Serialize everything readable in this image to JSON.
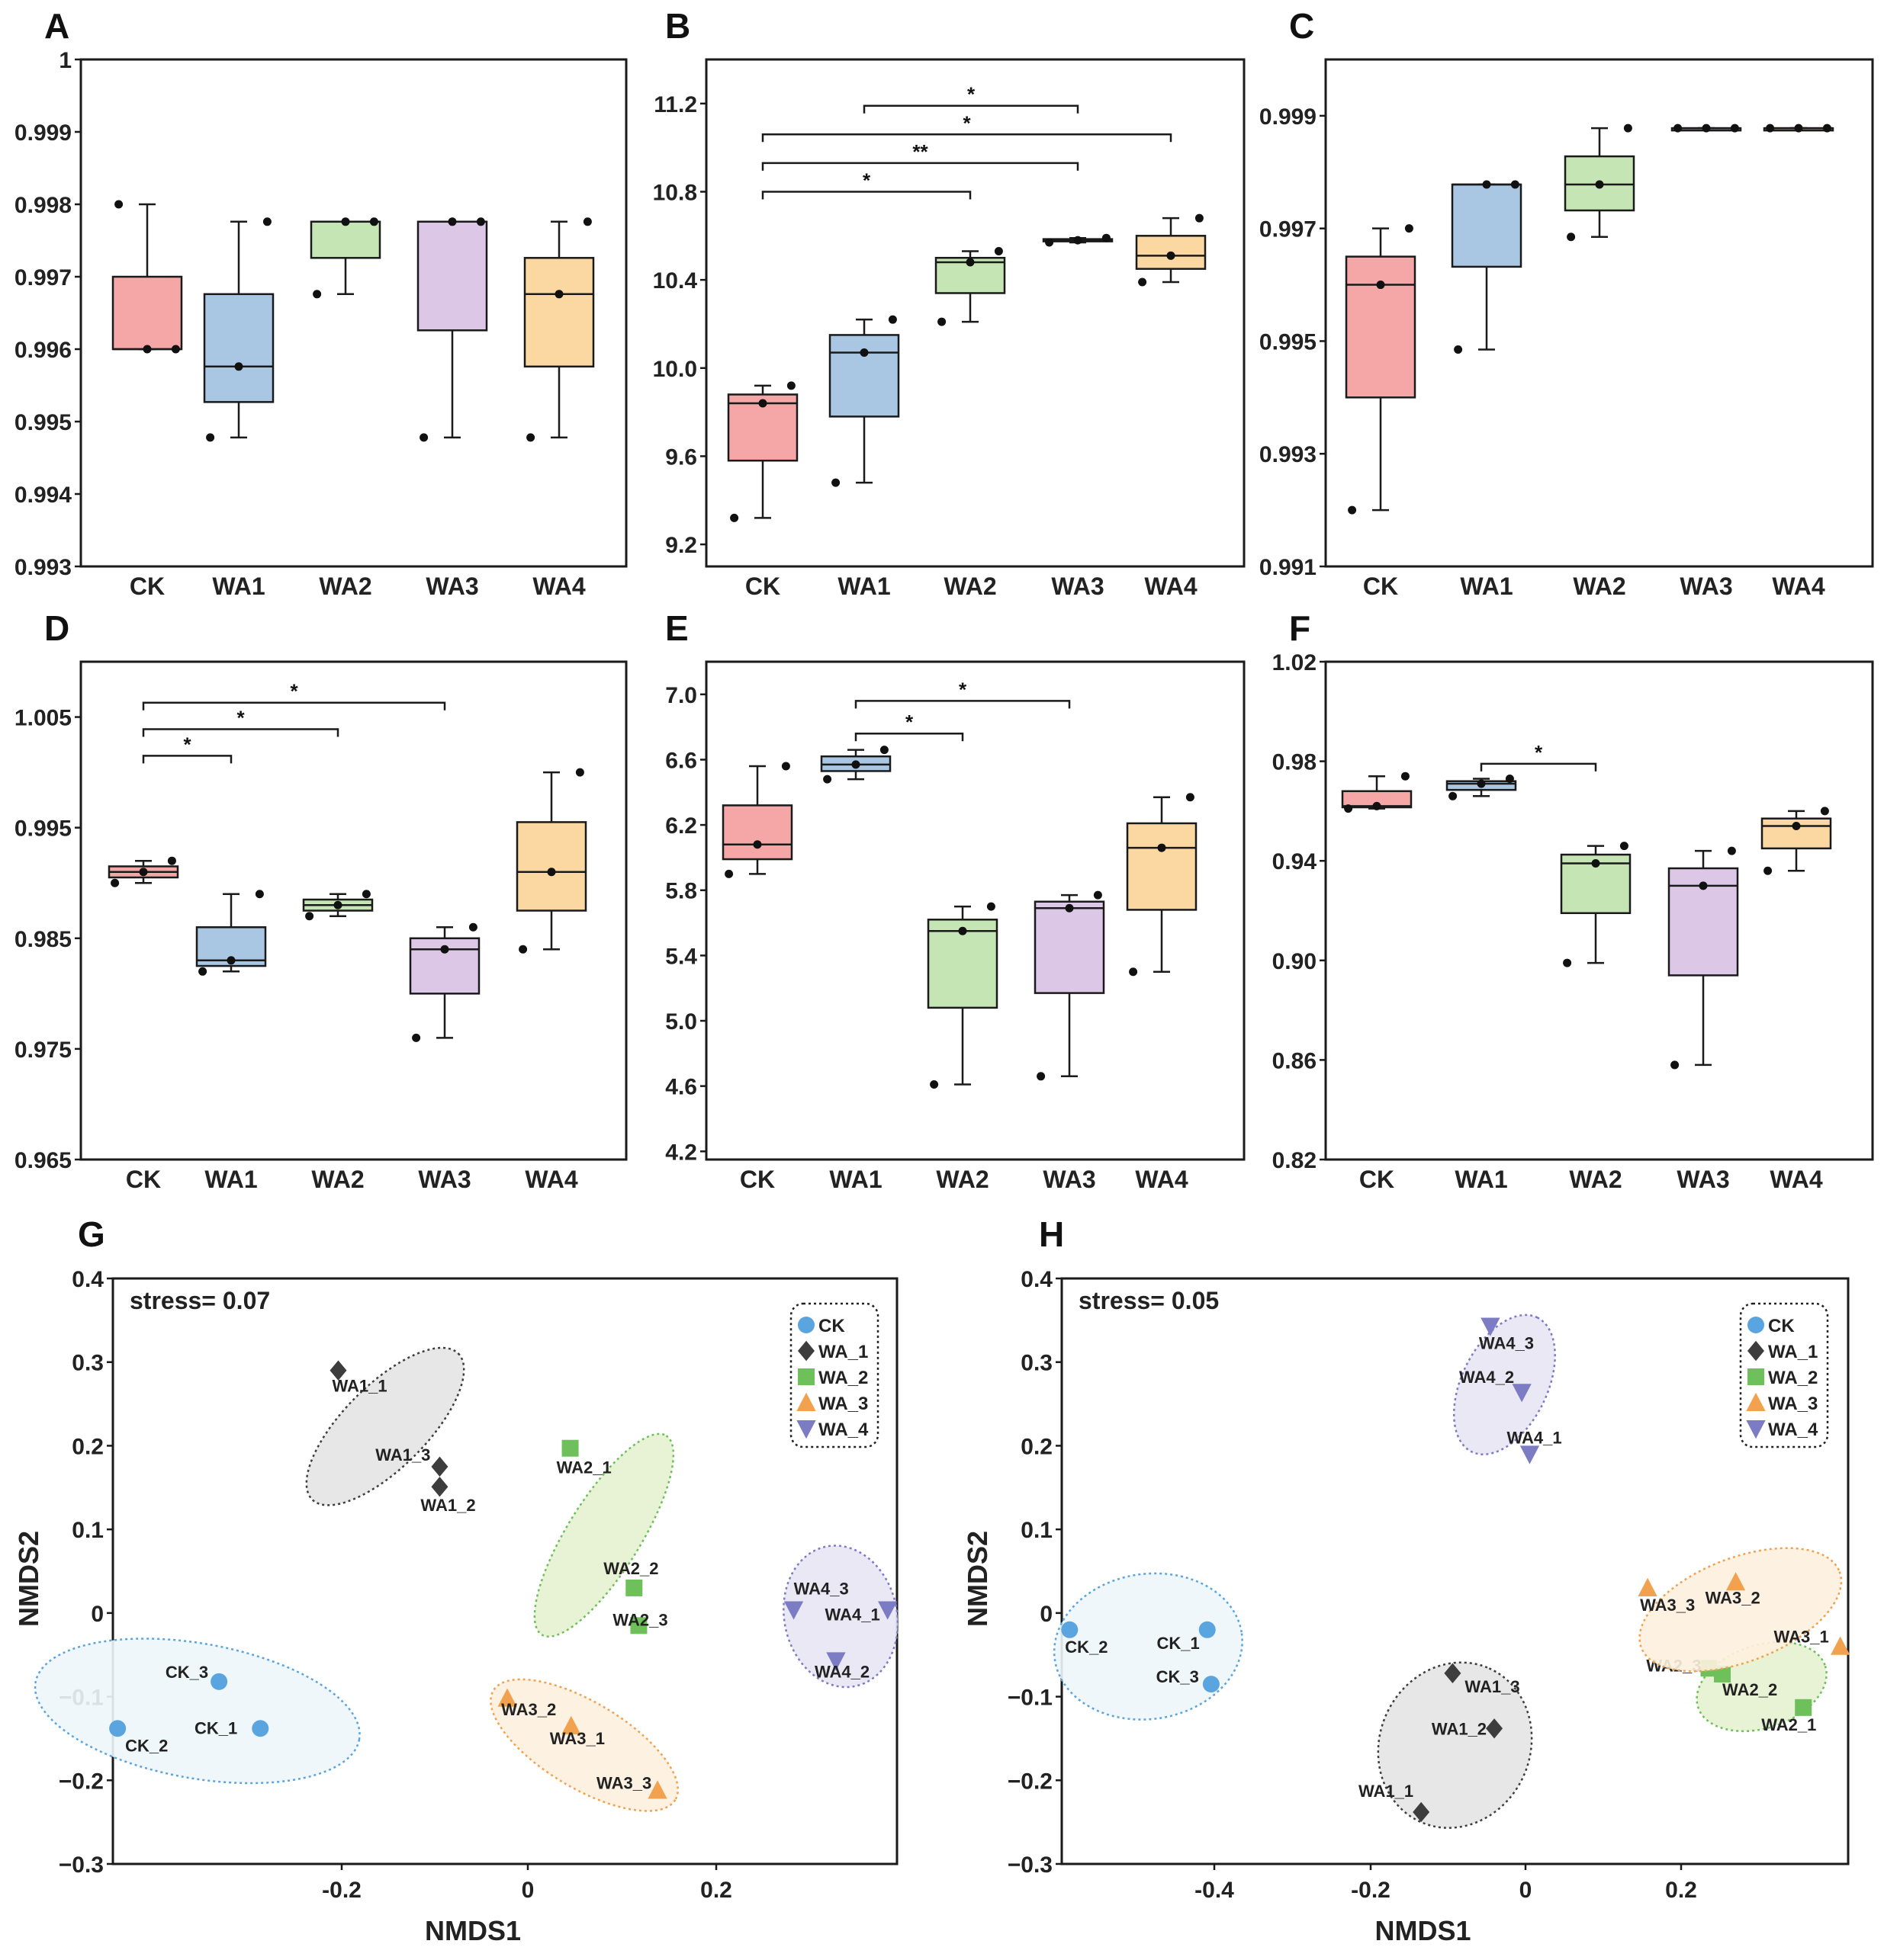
{
  "figure": {
    "colors": {
      "CK": "#f4a7a6",
      "WA1": "#a9c7e3",
      "WA2": "#c5e5b5",
      "WA3": "#dcc8e6",
      "WA4": "#fbd8a1"
    },
    "point_colors": {
      "CK": "#5aa5e0",
      "WA_1": "#3d3d3d",
      "WA_2": "#6ec05a",
      "WA_3": "#f2a24e",
      "WA_4": "#7b7cc3"
    },
    "ellipse_fill": {
      "CK": "#eef6fb",
      "WA1": "#e4e4e4",
      "WA2": "#e6f2d2",
      "WA3": "#fdf1de",
      "WA4": "#e8e6f4"
    }
  },
  "chart_data": [
    {
      "type": "box",
      "panel": "A",
      "title": "A",
      "categories": [
        "CK",
        "WA1",
        "WA2",
        "WA3",
        "WA4"
      ],
      "ylim": [
        0.993,
        1
      ],
      "yticks": [
        "0.993",
        "0.994",
        "0.995",
        "0.996",
        "0.997",
        "0.998",
        "0.999",
        "1"
      ],
      "series": [
        {
          "name": "CK",
          "whisker_low": 0.996,
          "q1": 0.996,
          "median": 0.996,
          "q3": 0.997,
          "whisker_high": 0.998,
          "points": [
            0.998,
            0.996,
            0.996
          ]
        },
        {
          "name": "WA1",
          "whisker_low": 0.99478,
          "q1": 0.99527,
          "median": 0.99576,
          "q3": 0.99676,
          "whisker_high": 0.99776,
          "points": [
            0.99478,
            0.99576,
            0.99776
          ]
        },
        {
          "name": "WA2",
          "whisker_low": 0.99676,
          "q1": 0.99726,
          "median": 0.99776,
          "q3": 0.99776,
          "whisker_high": 0.99776,
          "points": [
            0.99676,
            0.99776,
            0.99776
          ]
        },
        {
          "name": "WA3",
          "whisker_low": 0.99478,
          "q1": 0.99626,
          "median": 0.99776,
          "q3": 0.99776,
          "whisker_high": 0.99776,
          "points": [
            0.99478,
            0.99776,
            0.99776
          ]
        },
        {
          "name": "WA4",
          "whisker_low": 0.99478,
          "q1": 0.99576,
          "median": 0.99676,
          "q3": 0.99726,
          "whisker_high": 0.99776,
          "points": [
            0.99478,
            0.99676,
            0.99776
          ]
        }
      ],
      "significance": []
    },
    {
      "type": "box",
      "panel": "B",
      "title": "B",
      "categories": [
        "CK",
        "WA1",
        "WA2",
        "WA3",
        "WA4"
      ],
      "ylim": [
        9.1,
        11.4
      ],
      "yticks": [
        "9.2",
        "9.6",
        "10.0",
        "10.4",
        "10.8",
        "11.2"
      ],
      "series": [
        {
          "name": "CK",
          "whisker_low": 9.32,
          "q1": 9.58,
          "median": 9.84,
          "q3": 9.88,
          "whisker_high": 9.92,
          "points": [
            9.32,
            9.84,
            9.92
          ]
        },
        {
          "name": "WA1",
          "whisker_low": 9.48,
          "q1": 9.78,
          "median": 10.07,
          "q3": 10.15,
          "whisker_high": 10.22,
          "points": [
            9.48,
            10.07,
            10.22
          ]
        },
        {
          "name": "WA2",
          "whisker_low": 10.21,
          "q1": 10.34,
          "median": 10.48,
          "q3": 10.5,
          "whisker_high": 10.53,
          "points": [
            10.21,
            10.48,
            10.53
          ]
        },
        {
          "name": "WA3",
          "whisker_low": 10.57,
          "q1": 10.575,
          "median": 10.58,
          "q3": 10.585,
          "whisker_high": 10.59,
          "points": [
            10.57,
            10.58,
            10.59
          ]
        },
        {
          "name": "WA4",
          "whisker_low": 10.39,
          "q1": 10.45,
          "median": 10.51,
          "q3": 10.6,
          "whisker_high": 10.68,
          "points": [
            10.39,
            10.51,
            10.68
          ]
        }
      ],
      "significance": [
        {
          "from": "CK",
          "to": "WA2",
          "label": "*",
          "y": 10.8
        },
        {
          "from": "CK",
          "to": "WA3",
          "label": "**",
          "y": 10.93
        },
        {
          "from": "CK",
          "to": "WA4",
          "label": "*",
          "y": 11.06
        },
        {
          "from": "WA1",
          "to": "WA3",
          "label": "*",
          "y": 11.19
        }
      ]
    },
    {
      "type": "box",
      "panel": "C",
      "title": "C",
      "categories": [
        "CK",
        "WA1",
        "WA2",
        "WA3",
        "WA4"
      ],
      "ylim": [
        0.991,
        1
      ],
      "yticks": [
        "0.991",
        "0.993",
        "0.995",
        "0.997",
        "0.999"
      ],
      "series": [
        {
          "name": "CK",
          "whisker_low": 0.992,
          "q1": 0.994,
          "median": 0.996,
          "q3": 0.9965,
          "whisker_high": 0.997,
          "points": [
            0.992,
            0.996,
            0.997
          ]
        },
        {
          "name": "WA1",
          "whisker_low": 0.99485,
          "q1": 0.99632,
          "median": 0.99778,
          "q3": 0.99778,
          "whisker_high": 0.99778,
          "points": [
            0.99485,
            0.99778,
            0.99778
          ]
        },
        {
          "name": "WA2",
          "whisker_low": 0.99685,
          "q1": 0.99732,
          "median": 0.99778,
          "q3": 0.99828,
          "whisker_high": 0.99878,
          "points": [
            0.99685,
            0.99778,
            0.99878
          ]
        },
        {
          "name": "WA3",
          "whisker_low": 0.99878,
          "q1": 0.99878,
          "median": 0.99878,
          "q3": 0.99878,
          "whisker_high": 0.99878,
          "points": [
            0.99878,
            0.99878,
            0.99878
          ]
        },
        {
          "name": "WA4",
          "whisker_low": 0.99878,
          "q1": 0.99878,
          "median": 0.99878,
          "q3": 0.99878,
          "whisker_high": 0.99878,
          "points": [
            0.99878,
            0.99878,
            0.99878
          ]
        }
      ],
      "significance": []
    },
    {
      "type": "box",
      "panel": "D",
      "title": "D",
      "categories": [
        "CK",
        "WA1",
        "WA2",
        "WA3",
        "WA4"
      ],
      "ylim": [
        0.965,
        1.01
      ],
      "yticks": [
        "0.965",
        "0.975",
        "0.985",
        "0.995",
        "1.005"
      ],
      "series": [
        {
          "name": "CK",
          "whisker_low": 0.99,
          "q1": 0.9905,
          "median": 0.991,
          "q3": 0.9915,
          "whisker_high": 0.992,
          "points": [
            0.99,
            0.991,
            0.992
          ]
        },
        {
          "name": "WA1",
          "whisker_low": 0.982,
          "q1": 0.9825,
          "median": 0.983,
          "q3": 0.986,
          "whisker_high": 0.989,
          "points": [
            0.982,
            0.983,
            0.989
          ]
        },
        {
          "name": "WA2",
          "whisker_low": 0.987,
          "q1": 0.9875,
          "median": 0.988,
          "q3": 0.9885,
          "whisker_high": 0.989,
          "points": [
            0.987,
            0.988,
            0.989
          ]
        },
        {
          "name": "WA3",
          "whisker_low": 0.976,
          "q1": 0.98,
          "median": 0.984,
          "q3": 0.985,
          "whisker_high": 0.986,
          "points": [
            0.976,
            0.984,
            0.986
          ]
        },
        {
          "name": "WA4",
          "whisker_low": 0.984,
          "q1": 0.9875,
          "median": 0.991,
          "q3": 0.9955,
          "whisker_high": 1.0,
          "points": [
            0.984,
            0.991,
            1.0
          ]
        }
      ],
      "significance": [
        {
          "from": "CK",
          "to": "WA1",
          "label": "*",
          "y": 1.0015
        },
        {
          "from": "CK",
          "to": "WA2",
          "label": "*",
          "y": 1.0039
        },
        {
          "from": "CK",
          "to": "WA3",
          "label": "*",
          "y": 1.0063
        }
      ]
    },
    {
      "type": "box",
      "panel": "E",
      "title": "E",
      "categories": [
        "CK",
        "WA1",
        "WA2",
        "WA3",
        "WA4"
      ],
      "ylim": [
        4.15,
        7.2
      ],
      "yticks": [
        "4.2",
        "4.6",
        "5.0",
        "5.4",
        "5.8",
        "6.2",
        "6.6",
        "7.0"
      ],
      "series": [
        {
          "name": "CK",
          "whisker_low": 5.9,
          "q1": 5.99,
          "median": 6.08,
          "q3": 6.32,
          "whisker_high": 6.56,
          "points": [
            5.9,
            6.08,
            6.56
          ]
        },
        {
          "name": "WA1",
          "whisker_low": 6.48,
          "q1": 6.53,
          "median": 6.57,
          "q3": 6.62,
          "whisker_high": 6.66,
          "points": [
            6.48,
            6.57,
            6.66
          ]
        },
        {
          "name": "WA2",
          "whisker_low": 4.61,
          "q1": 5.08,
          "median": 5.55,
          "q3": 5.62,
          "whisker_high": 5.7,
          "points": [
            4.61,
            5.55,
            5.7
          ]
        },
        {
          "name": "WA3",
          "whisker_low": 4.66,
          "q1": 5.17,
          "median": 5.69,
          "q3": 5.73,
          "whisker_high": 5.77,
          "points": [
            4.66,
            5.69,
            5.77
          ]
        },
        {
          "name": "WA4",
          "whisker_low": 5.3,
          "q1": 5.68,
          "median": 6.06,
          "q3": 6.21,
          "whisker_high": 6.37,
          "points": [
            5.3,
            6.06,
            6.37
          ]
        }
      ],
      "significance": [
        {
          "from": "WA1",
          "to": "WA2",
          "label": "*",
          "y": 6.76
        },
        {
          "from": "WA1",
          "to": "WA3",
          "label": "*",
          "y": 6.96
        }
      ]
    },
    {
      "type": "box",
      "panel": "F",
      "title": "F",
      "categories": [
        "CK",
        "WA1",
        "WA2",
        "WA3",
        "WA4"
      ],
      "ylim": [
        0.82,
        1.02
      ],
      "yticks": [
        "0.82",
        "0.86",
        "0.90",
        "0.94",
        "0.98",
        "1.02"
      ],
      "series": [
        {
          "name": "CK",
          "whisker_low": 0.961,
          "q1": 0.9615,
          "median": 0.962,
          "q3": 0.968,
          "whisker_high": 0.974,
          "points": [
            0.961,
            0.962,
            0.974
          ]
        },
        {
          "name": "WA1",
          "whisker_low": 0.966,
          "q1": 0.9685,
          "median": 0.971,
          "q3": 0.972,
          "whisker_high": 0.973,
          "points": [
            0.966,
            0.971,
            0.973
          ]
        },
        {
          "name": "WA2",
          "whisker_low": 0.899,
          "q1": 0.919,
          "median": 0.939,
          "q3": 0.9425,
          "whisker_high": 0.946,
          "points": [
            0.899,
            0.939,
            0.946
          ]
        },
        {
          "name": "WA3",
          "whisker_low": 0.858,
          "q1": 0.894,
          "median": 0.93,
          "q3": 0.937,
          "whisker_high": 0.944,
          "points": [
            0.858,
            0.93,
            0.944
          ]
        },
        {
          "name": "WA4",
          "whisker_low": 0.936,
          "q1": 0.945,
          "median": 0.954,
          "q3": 0.957,
          "whisker_high": 0.96,
          "points": [
            0.936,
            0.954,
            0.96
          ]
        }
      ],
      "significance": [
        {
          "from": "WA1",
          "to": "WA2",
          "label": "*",
          "y": 0.979
        }
      ]
    },
    {
      "type": "scatter",
      "panel": "G",
      "title": "G",
      "annotation": "stress= 0.07",
      "xlabel": "NMDS1",
      "ylabel": "NMDS2",
      "xlim": [
        -0.44,
        0.395
      ],
      "ylim": [
        -0.3,
        0.4
      ],
      "xticks": [
        "-0.2",
        "0",
        "0.2"
      ],
      "yticks": [
        "−0.3",
        "−0.2",
        "−0.1",
        "0",
        "0.1",
        "0.2",
        "0.3",
        "0.4"
      ],
      "legend": [
        "CK",
        "WA_1",
        "WA_2",
        "WA_3",
        "WA_4"
      ],
      "groups": [
        {
          "name": "CK",
          "ellipse": {
            "cx": -0.35,
            "cy": -0.117,
            "rx": 0.175,
            "ry": 0.052,
            "angle": 10
          },
          "points": [
            {
              "label": "CK_1",
              "x": -0.283,
              "y": -0.138
            },
            {
              "label": "CK_2",
              "x": -0.435,
              "y": -0.138
            },
            {
              "label": "CK_3",
              "x": -0.327,
              "y": -0.082
            }
          ]
        },
        {
          "name": "WA_1",
          "ellipse": {
            "cx": -0.15,
            "cy": 0.223,
            "rx": 0.11,
            "ry": 0.032,
            "angle": -45
          },
          "points": [
            {
              "label": "WA1_1",
              "x": -0.2,
              "y": 0.29
            },
            {
              "label": "WA1_2",
              "x": -0.092,
              "y": 0.151
            },
            {
              "label": "WA1_3",
              "x": -0.092,
              "y": 0.175
            }
          ]
        },
        {
          "name": "WA_2",
          "ellipse": {
            "cx": 0.083,
            "cy": 0.093,
            "rx": 0.125,
            "ry": 0.028,
            "angle": -58
          },
          "points": [
            {
              "label": "WA2_1",
              "x": 0.047,
              "y": 0.197
            },
            {
              "label": "WA2_2",
              "x": 0.115,
              "y": 0.03
            },
            {
              "label": "WA2_3",
              "x": 0.12,
              "y": -0.015
            }
          ]
        },
        {
          "name": "WA_3",
          "ellipse": {
            "cx": 0.062,
            "cy": -0.158,
            "rx": 0.113,
            "ry": 0.033,
            "angle": 31
          },
          "points": [
            {
              "label": "WA3_1",
              "x": 0.048,
              "y": -0.135
            },
            {
              "label": "WA3_2",
              "x": -0.02,
              "y": -0.102
            },
            {
              "label": "WA3_3",
              "x": 0.14,
              "y": -0.212
            }
          ]
        },
        {
          "name": "WA_4",
          "ellipse": {
            "cx": 0.335,
            "cy": -0.004,
            "rx": 0.06,
            "ry": 0.055,
            "angle": -12
          },
          "points": [
            {
              "label": "WA4_1",
              "x": 0.385,
              "y": 0.004
            },
            {
              "label": "WA4_2",
              "x": 0.33,
              "y": -0.057
            },
            {
              "label": "WA4_3",
              "x": 0.285,
              "y": 0.004
            }
          ]
        }
      ]
    },
    {
      "type": "scatter",
      "panel": "H",
      "title": "H",
      "annotation": "stress= 0.05",
      "xlabel": "NMDS1",
      "ylabel": "NMDS2",
      "xlim": [
        -0.585,
        0.415
      ],
      "ylim": [
        -0.3,
        0.4
      ],
      "xticks": [
        "-0.4",
        "-0.2",
        "0",
        "0.2"
      ],
      "yticks": [
        "−0.3",
        "−0.2",
        "−0.1",
        "0",
        "0.1",
        "0.2",
        "0.3",
        "0.4"
      ],
      "legend": [
        "CK",
        "WA_1",
        "WA_2",
        "WA_3",
        "WA_4"
      ],
      "groups": [
        {
          "name": "CK",
          "ellipse": {
            "cx": -0.475,
            "cy": -0.04,
            "rx": 0.12,
            "ry": 0.056,
            "angle": -8
          },
          "points": [
            {
              "label": "CK_1",
              "x": -0.4,
              "y": -0.02
            },
            {
              "label": "CK_2",
              "x": -0.575,
              "y": -0.02
            },
            {
              "label": "CK_3",
              "x": -0.395,
              "y": -0.085
            }
          ]
        },
        {
          "name": "WA_1",
          "ellipse": {
            "cx": -0.085,
            "cy": -0.158,
            "rx": 0.107,
            "ry": 0.058,
            "angle": -66
          },
          "points": [
            {
              "label": "WA1_1",
              "x": -0.128,
              "y": -0.238
            },
            {
              "label": "WA1_2",
              "x": -0.035,
              "y": -0.138
            },
            {
              "label": "WA1_3",
              "x": -0.088,
              "y": -0.072
            }
          ]
        },
        {
          "name": "WA_2",
          "ellipse": {
            "cx": 0.305,
            "cy": -0.088,
            "rx": 0.085,
            "ry": 0.032,
            "angle": -18
          },
          "points": [
            {
              "label": "WA2_1",
              "x": 0.358,
              "y": -0.113
            },
            {
              "label": "WA2_2",
              "x": 0.255,
              "y": -0.073
            },
            {
              "label": "WA2_3",
              "x": 0.238,
              "y": -0.066
            }
          ]
        },
        {
          "name": "WA_3",
          "ellipse": {
            "cx": 0.278,
            "cy": 0.004,
            "rx": 0.135,
            "ry": 0.04,
            "angle": -21
          },
          "points": [
            {
              "label": "WA3_1",
              "x": 0.405,
              "y": -0.04
            },
            {
              "label": "WA3_2",
              "x": 0.272,
              "y": 0.037
            },
            {
              "label": "WA3_3",
              "x": 0.16,
              "y": 0.03
            }
          ]
        },
        {
          "name": "WA_4",
          "ellipse": {
            "cx": -0.022,
            "cy": 0.273,
            "rx": 0.095,
            "ry": 0.033,
            "angle": -64
          },
          "points": [
            {
              "label": "WA4_1",
              "x": 0.01,
              "y": 0.19
            },
            {
              "label": "WA4_2",
              "x": 0.0,
              "y": 0.264
            },
            {
              "label": "WA4_3",
              "x": -0.04,
              "y": 0.343
            }
          ]
        }
      ]
    }
  ]
}
